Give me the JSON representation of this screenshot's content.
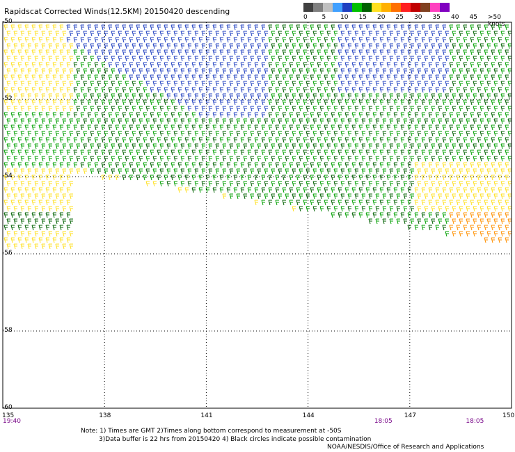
{
  "title": "Rapidscat Corrected Winds(12.5KM) 20150420 descending",
  "legend": {
    "ticks": [
      "0",
      "5",
      "10",
      "15",
      "20",
      "25",
      "30",
      "35",
      "40",
      "45",
      ">50 knots"
    ],
    "colors": [
      "#404040",
      "#808080",
      "#c0c0c0",
      "#40a0ff",
      "#2040c0",
      "#00c000",
      "#006000",
      "#ffe020",
      "#ffb000",
      "#ff7000",
      "#ff2020",
      "#c00000",
      "#804020",
      "#ff40c0",
      "#8000c0"
    ]
  },
  "axes": {
    "lon_ticks": [
      {
        "label": "135",
        "value": 135
      },
      {
        "label": "138",
        "value": 138
      },
      {
        "label": "141",
        "value": 141
      },
      {
        "label": "144",
        "value": 144
      },
      {
        "label": "147",
        "value": 147
      },
      {
        "label": "150",
        "value": 150
      }
    ],
    "lat_ticks": [
      {
        "label": "-50",
        "value": -50
      },
      {
        "label": "-52",
        "value": -52
      },
      {
        "label": "-54",
        "value": -54
      },
      {
        "label": "-56",
        "value": -56
      },
      {
        "label": "-58",
        "value": -58
      },
      {
        "label": "-60",
        "value": -60
      }
    ],
    "lon_range": [
      135,
      150
    ],
    "lat_range": [
      -60,
      -50
    ]
  },
  "times": [
    {
      "label": "19:40",
      "lon": 135
    },
    {
      "label": "18:05",
      "lon": 146.2
    },
    {
      "label": "18:05",
      "lon": 148.9
    }
  ],
  "notes": {
    "line1": "Note: 1) Times are GMT 2)Times along bottom correspond to measurement at -50S",
    "line2": "3)Data buffer is 22 hrs from 20150420 4) Black circles indicate possible contamination"
  },
  "credit": "NOAA/NESDIS/Office of Research and Applications",
  "wind_regions": [
    {
      "name": "yellow-west",
      "color": "#ffe020"
    },
    {
      "name": "green",
      "color": "#00a000"
    },
    {
      "name": "dark-green",
      "color": "#006000"
    },
    {
      "name": "blue",
      "color": "#2040c0"
    },
    {
      "name": "orange",
      "color": "#ff9000"
    }
  ]
}
